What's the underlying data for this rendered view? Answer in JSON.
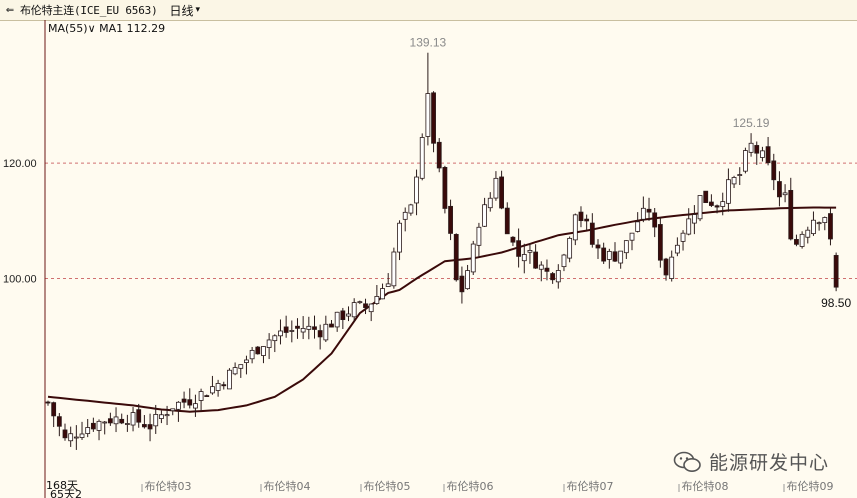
{
  "header": {
    "menu_icon": "menu-arrows-icon",
    "title": "布伦特主连(ICE_EU 6563)",
    "period": "日线"
  },
  "watermark": {
    "text": "能源研发中心",
    "icon": "wechat-icon"
  },
  "chart_data": {
    "type": "candlestick",
    "ma_legend": {
      "name": "MA(55)",
      "series_label": "MA1",
      "value": "112.29"
    },
    "y_ticks": [
      100,
      120
    ],
    "y_tick_labels": [
      "100.00",
      "120.00"
    ],
    "ylim": [
      65,
      145
    ],
    "gridlines": "dashed horizontal at 100 and 120",
    "x_labels": [
      "布伦特03",
      "布伦特04",
      "布伦特05",
      "布伦特06",
      "布伦特07",
      "布伦特08",
      "布伦特09"
    ],
    "bottom_labels": [
      "168天",
      "65天2"
    ],
    "annotations": [
      {
        "text": "139.13",
        "value": 139.13,
        "note": "high"
      },
      {
        "text": "125.19",
        "value": 125.19,
        "note": "high"
      },
      {
        "text": "98.50",
        "value": 98.5,
        "note": "last"
      }
    ],
    "colors": {
      "up": "#ffffff",
      "down": "#3a0a0a",
      "outline": "#2a1a1a",
      "ma": "#3a0a0a",
      "grid": "#d07070"
    },
    "ohlc_keyframes": [
      [
        0,
        78.5
      ],
      [
        3,
        72.0
      ],
      [
        6,
        74.0
      ],
      [
        10,
        75.5
      ],
      [
        14,
        76.0
      ],
      [
        18,
        74.5
      ],
      [
        22,
        78.0
      ],
      [
        25,
        79.0
      ],
      [
        28,
        80.5
      ],
      [
        31,
        82.5
      ],
      [
        35,
        86.0
      ],
      [
        38,
        89.0
      ],
      [
        41,
        90.5
      ],
      [
        45,
        91.5
      ],
      [
        48,
        91.0
      ],
      [
        51,
        93.0
      ],
      [
        54,
        95.0
      ],
      [
        56,
        95.0
      ],
      [
        58,
        97.0
      ],
      [
        60,
        100.0
      ],
      [
        62,
        109.0
      ],
      [
        64,
        112.0
      ],
      [
        66,
        125.0
      ],
      [
        67,
        131.0
      ],
      [
        68,
        124.0
      ],
      [
        70,
        112.0
      ],
      [
        71,
        107.0
      ],
      [
        72,
        99.5
      ],
      [
        73,
        98.0
      ],
      [
        75,
        105.0
      ],
      [
        76,
        110.0
      ],
      [
        78,
        114.0
      ],
      [
        79,
        118.0
      ],
      [
        80,
        112.0
      ],
      [
        82,
        106.0
      ],
      [
        83,
        104.0
      ],
      [
        84,
        105.0
      ],
      [
        86,
        103.0
      ],
      [
        88,
        101.0
      ],
      [
        89,
        101.0
      ],
      [
        91,
        104.0
      ],
      [
        93,
        112.0
      ],
      [
        95,
        109.0
      ],
      [
        96,
        106.0
      ],
      [
        98,
        104.0
      ],
      [
        100,
        104.0
      ],
      [
        102,
        106.0
      ],
      [
        104,
        110.0
      ],
      [
        106,
        112.0
      ],
      [
        108,
        104.0
      ],
      [
        109,
        101.0
      ],
      [
        111,
        107.0
      ],
      [
        113,
        110.0
      ],
      [
        115,
        114.0
      ],
      [
        118,
        113.0
      ],
      [
        120,
        116.0
      ],
      [
        122,
        118.0
      ],
      [
        123,
        121.0
      ],
      [
        124,
        123.0
      ],
      [
        126,
        121.0
      ],
      [
        128,
        117.5
      ],
      [
        129,
        114.0
      ],
      [
        130,
        114.0
      ],
      [
        131,
        108.0
      ],
      [
        132,
        106.0
      ],
      [
        133,
        108.0
      ],
      [
        135,
        110.5
      ],
      [
        137,
        111.0
      ],
      [
        138,
        106.0
      ],
      [
        139,
        100.0
      ]
    ],
    "ma_keyframes": [
      [
        0,
        79.5
      ],
      [
        5,
        79.0
      ],
      [
        10,
        78.5
      ],
      [
        15,
        78.0
      ],
      [
        20,
        77.3
      ],
      [
        25,
        76.9
      ],
      [
        30,
        77.2
      ],
      [
        35,
        78.0
      ],
      [
        40,
        79.5
      ],
      [
        45,
        82.5
      ],
      [
        50,
        87.0
      ],
      [
        55,
        94.0
      ],
      [
        60,
        97.5
      ],
      [
        62,
        98.0
      ],
      [
        65,
        100.0
      ],
      [
        70,
        103.0
      ],
      [
        75,
        103.5
      ],
      [
        80,
        104.5
      ],
      [
        85,
        106.0
      ],
      [
        90,
        107.5
      ],
      [
        95,
        108.3
      ],
      [
        100,
        109.3
      ],
      [
        105,
        110.2
      ],
      [
        110,
        110.8
      ],
      [
        115,
        111.3
      ],
      [
        120,
        111.8
      ],
      [
        125,
        112.0
      ],
      [
        130,
        112.2
      ],
      [
        135,
        112.3
      ],
      [
        139,
        112.29
      ]
    ]
  }
}
